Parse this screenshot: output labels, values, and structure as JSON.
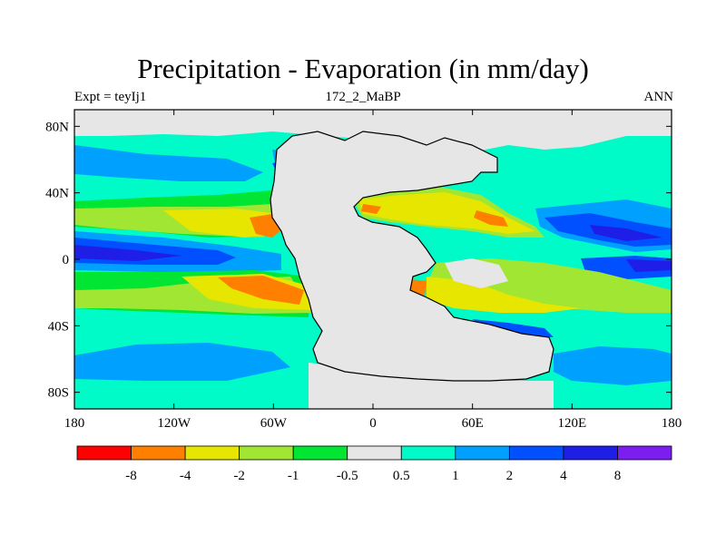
{
  "title": "Precipitation - Evaporation (in mm/day)",
  "subtitle_left": "Expt = teyIj1",
  "subtitle_center": "172_2_MaBP",
  "subtitle_right": "ANN",
  "lon_ticks": [
    {
      "value": -180,
      "label": "180"
    },
    {
      "value": -120,
      "label": "120W"
    },
    {
      "value": -60,
      "label": "60W"
    },
    {
      "value": 0,
      "label": "0"
    },
    {
      "value": 60,
      "label": "60E"
    },
    {
      "value": 120,
      "label": "120E"
    },
    {
      "value": 180,
      "label": "180"
    }
  ],
  "lat_ticks": [
    {
      "value": 80,
      "label": "80N"
    },
    {
      "value": 40,
      "label": "40N"
    },
    {
      "value": 0,
      "label": "0"
    },
    {
      "value": -40,
      "label": "40S"
    },
    {
      "value": -80,
      "label": "80S"
    }
  ],
  "colorbar": {
    "colors": [
      "#ff0000",
      "#ff8000",
      "#e6e600",
      "#a0e632",
      "#00e632",
      "#e6e6e6",
      "#00fac8",
      "#00a0ff",
      "#0050ff",
      "#1e1ee6",
      "#7d1ef0"
    ],
    "labels": [
      "-8",
      "-4",
      "-2",
      "-1",
      "-0.5",
      "0.5",
      "1",
      "2",
      "4",
      "8"
    ]
  },
  "colors": {
    "land": "#e6e6e6",
    "neutral": "#e6e6e6",
    "ocean": "#00fac8",
    "outline": "#000000"
  }
}
